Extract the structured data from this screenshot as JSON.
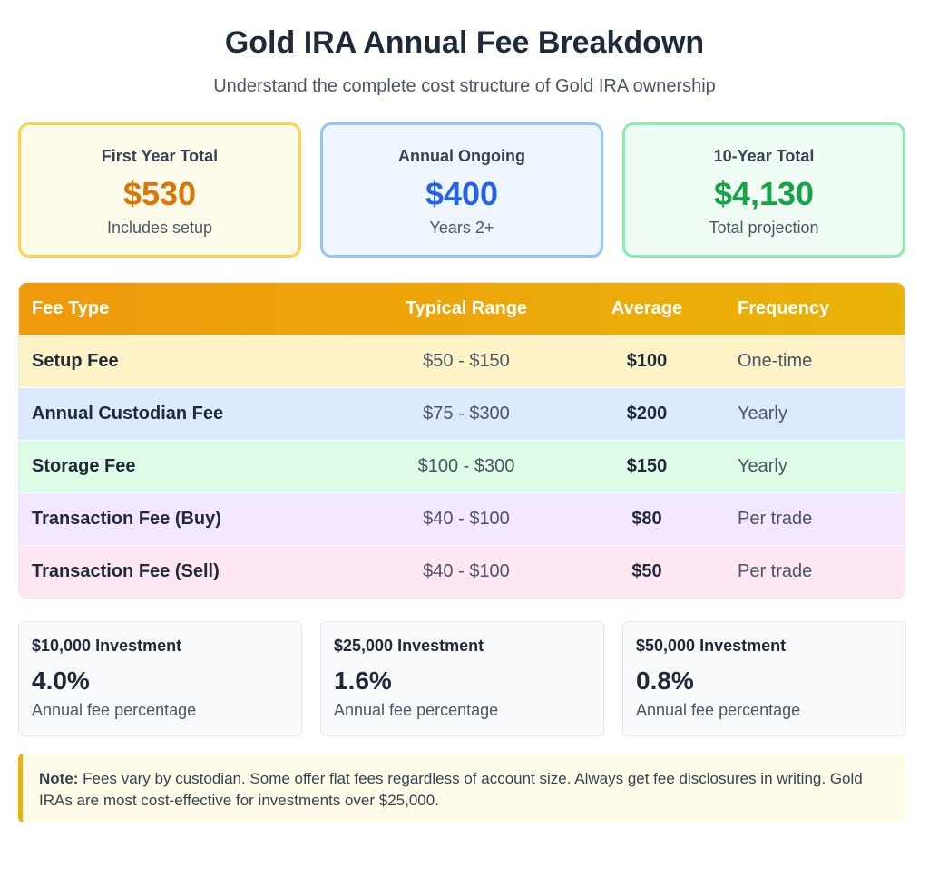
{
  "header": {
    "title": "Gold IRA Annual Fee Breakdown",
    "subtitle": "Understand the complete cost structure of Gold IRA ownership"
  },
  "summary": [
    {
      "label": "First Year Total",
      "value": "$530",
      "sub": "Includes setup",
      "color": "#d97706",
      "bg": "#fffbeb",
      "border": "#fcd34d"
    },
    {
      "label": "Annual Ongoing",
      "value": "$400",
      "sub": "Years 2+",
      "color": "#2563eb",
      "bg": "#eff6ff",
      "border": "#93c5fd"
    },
    {
      "label": "10-Year Total",
      "value": "$4,130",
      "sub": "Total projection",
      "color": "#16a34a",
      "bg": "#f0fdf4",
      "border": "#86efac"
    }
  ],
  "table": {
    "headers": [
      "Fee Type",
      "Typical Range",
      "Average",
      "Frequency"
    ],
    "rows": [
      {
        "type": "Setup Fee",
        "range": "$50 - $150",
        "avg": "$100",
        "freq": "One-time",
        "bg": "#fef3c7"
      },
      {
        "type": "Annual Custodian Fee",
        "range": "$75 - $300",
        "avg": "$200",
        "freq": "Yearly",
        "bg": "#dbeafe"
      },
      {
        "type": "Storage Fee",
        "range": "$100 - $300",
        "avg": "$150",
        "freq": "Yearly",
        "bg": "#dcfce7"
      },
      {
        "type": "Transaction Fee (Buy)",
        "range": "$40 - $100",
        "avg": "$80",
        "freq": "Per trade",
        "bg": "#f3e8ff"
      },
      {
        "type": "Transaction Fee (Sell)",
        "range": "$40 - $100",
        "avg": "$50",
        "freq": "Per trade",
        "bg": "#fce7f3"
      }
    ]
  },
  "investments": [
    {
      "label": "$10,000 Investment",
      "value": "4.0%",
      "sub": "Annual fee percentage"
    },
    {
      "label": "$25,000 Investment",
      "value": "1.6%",
      "sub": "Annual fee percentage"
    },
    {
      "label": "$50,000 Investment",
      "value": "0.8%",
      "sub": "Annual fee percentage"
    }
  ],
  "note": {
    "label": "Note:",
    "text": " Fees vary by custodian. Some offer flat fees regardless of account size. Always get fee disclosures in writing. Gold IRAs are most cost-effective for investments over $25,000."
  }
}
